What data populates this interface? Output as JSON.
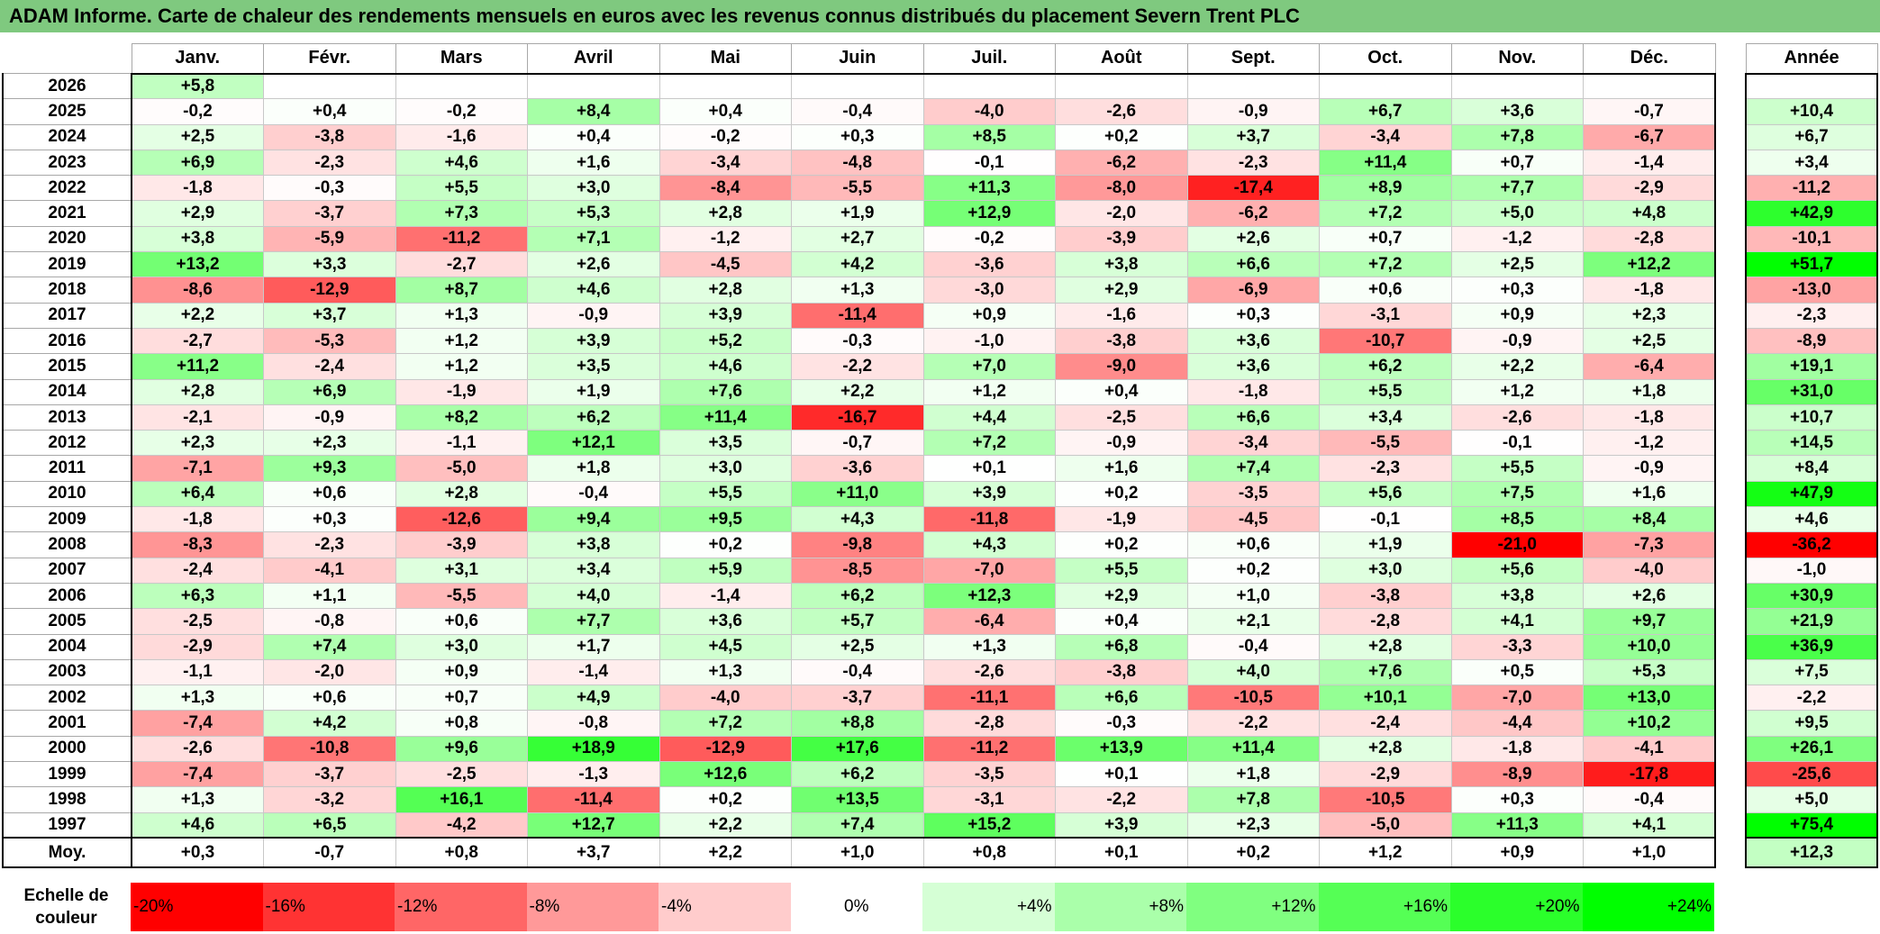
{
  "title": "ADAM Informe. Carte de chaleur des rendements mensuels en euros avec les revenus connus distribués du placement Severn Trent PLC",
  "chart_data": {
    "type": "heatmap",
    "title": "ADAM Informe. Carte de chaleur des rendements mensuels en euros avec les revenus connus distribués du placement Severn Trent PLC",
    "months": [
      "Janv.",
      "Févr.",
      "Mars",
      "Avril",
      "Mai",
      "Juin",
      "Juil.",
      "Août",
      "Sept.",
      "Oct.",
      "Nov.",
      "Déc."
    ],
    "annual_header": "Année",
    "rows": [
      {
        "year": "2026",
        "values": [
          "+5,8",
          "",
          "",
          "",
          "",
          "",
          "",
          "",
          "",
          "",
          "",
          ""
        ],
        "annual": ""
      },
      {
        "year": "2025",
        "values": [
          "-0,2",
          "+0,4",
          "-0,2",
          "+8,4",
          "+0,4",
          "-0,4",
          "-4,0",
          "-2,6",
          "-0,9",
          "+6,7",
          "+3,6",
          "-0,7"
        ],
        "annual": "+10,4"
      },
      {
        "year": "2024",
        "values": [
          "+2,5",
          "-3,8",
          "-1,6",
          "+0,4",
          "-0,2",
          "+0,3",
          "+8,5",
          "+0,2",
          "+3,7",
          "-3,4",
          "+7,8",
          "-6,7"
        ],
        "annual": "+6,7"
      },
      {
        "year": "2023",
        "values": [
          "+6,9",
          "-2,3",
          "+4,6",
          "+1,6",
          "-3,4",
          "-4,8",
          "-0,1",
          "-6,2",
          "-2,3",
          "+11,4",
          "+0,7",
          "-1,4"
        ],
        "annual": "+3,4"
      },
      {
        "year": "2022",
        "values": [
          "-1,8",
          "-0,3",
          "+5,5",
          "+3,0",
          "-8,4",
          "-5,5",
          "+11,3",
          "-8,0",
          "-17,4",
          "+8,9",
          "+7,7",
          "-2,9"
        ],
        "annual": "-11,2"
      },
      {
        "year": "2021",
        "values": [
          "+2,9",
          "-3,7",
          "+7,3",
          "+5,3",
          "+2,8",
          "+1,9",
          "+12,9",
          "-2,0",
          "-6,2",
          "+7,2",
          "+5,0",
          "+4,8"
        ],
        "annual": "+42,9"
      },
      {
        "year": "2020",
        "values": [
          "+3,8",
          "-5,9",
          "-11,2",
          "+7,1",
          "-1,2",
          "+2,7",
          "-0,2",
          "-3,9",
          "+2,6",
          "+0,7",
          "-1,2",
          "-2,8"
        ],
        "annual": "-10,1"
      },
      {
        "year": "2019",
        "values": [
          "+13,2",
          "+3,3",
          "-2,7",
          "+2,6",
          "-4,5",
          "+4,2",
          "-3,6",
          "+3,8",
          "+6,6",
          "+7,2",
          "+2,5",
          "+12,2"
        ],
        "annual": "+51,7"
      },
      {
        "year": "2018",
        "values": [
          "-8,6",
          "-12,9",
          "+8,7",
          "+4,6",
          "+2,8",
          "+1,3",
          "-3,0",
          "+2,9",
          "-6,9",
          "+0,6",
          "+0,3",
          "-1,8"
        ],
        "annual": "-13,0"
      },
      {
        "year": "2017",
        "values": [
          "+2,2",
          "+3,7",
          "+1,3",
          "-0,9",
          "+3,9",
          "-11,4",
          "+0,9",
          "-1,6",
          "+0,3",
          "-3,1",
          "+0,9",
          "+2,3"
        ],
        "annual": "-2,3"
      },
      {
        "year": "2016",
        "values": [
          "-2,7",
          "-5,3",
          "+1,2",
          "+3,9",
          "+5,2",
          "-0,3",
          "-1,0",
          "-3,8",
          "+3,6",
          "-10,7",
          "-0,9",
          "+2,5"
        ],
        "annual": "-8,9"
      },
      {
        "year": "2015",
        "values": [
          "+11,2",
          "-2,4",
          "+1,2",
          "+3,5",
          "+4,6",
          "-2,2",
          "+7,0",
          "-9,0",
          "+3,6",
          "+6,2",
          "+2,2",
          "-6,4"
        ],
        "annual": "+19,1"
      },
      {
        "year": "2014",
        "values": [
          "+2,8",
          "+6,9",
          "-1,9",
          "+1,9",
          "+7,6",
          "+2,2",
          "+1,2",
          "+0,4",
          "-1,8",
          "+5,5",
          "+1,2",
          "+1,8"
        ],
        "annual": "+31,0"
      },
      {
        "year": "2013",
        "values": [
          "-2,1",
          "-0,9",
          "+8,2",
          "+6,2",
          "+11,4",
          "-16,7",
          "+4,4",
          "-2,5",
          "+6,6",
          "+3,4",
          "-2,6",
          "-1,8"
        ],
        "annual": "+10,7"
      },
      {
        "year": "2012",
        "values": [
          "+2,3",
          "+2,3",
          "-1,1",
          "+12,1",
          "+3,5",
          "-0,7",
          "+7,2",
          "-0,9",
          "-3,4",
          "-5,5",
          "-0,1",
          "-1,2"
        ],
        "annual": "+14,5"
      },
      {
        "year": "2011",
        "values": [
          "-7,1",
          "+9,3",
          "-5,0",
          "+1,8",
          "+3,0",
          "-3,6",
          "+0,1",
          "+1,6",
          "+7,4",
          "-2,3",
          "+5,5",
          "-0,9"
        ],
        "annual": "+8,4"
      },
      {
        "year": "2010",
        "values": [
          "+6,4",
          "+0,6",
          "+2,8",
          "-0,4",
          "+5,5",
          "+11,0",
          "+3,9",
          "+0,2",
          "-3,5",
          "+5,6",
          "+7,5",
          "+1,6"
        ],
        "annual": "+47,9"
      },
      {
        "year": "2009",
        "values": [
          "-1,8",
          "+0,3",
          "-12,6",
          "+9,4",
          "+9,5",
          "+4,3",
          "-11,8",
          "-1,9",
          "-4,5",
          "-0,1",
          "+8,5",
          "+8,4"
        ],
        "annual": "+4,6"
      },
      {
        "year": "2008",
        "values": [
          "-8,3",
          "-2,3",
          "-3,9",
          "+3,8",
          "+0,2",
          "-9,8",
          "+4,3",
          "+0,2",
          "+0,6",
          "+1,9",
          "-21,0",
          "-7,3"
        ],
        "annual": "-36,2"
      },
      {
        "year": "2007",
        "values": [
          "-2,4",
          "-4,1",
          "+3,1",
          "+3,4",
          "+5,9",
          "-8,5",
          "-7,0",
          "+5,5",
          "+0,2",
          "+3,0",
          "+5,6",
          "-4,0"
        ],
        "annual": "-1,0"
      },
      {
        "year": "2006",
        "values": [
          "+6,3",
          "+1,1",
          "-5,5",
          "+4,0",
          "-1,4",
          "+6,2",
          "+12,3",
          "+2,9",
          "+1,0",
          "-3,8",
          "+3,8",
          "+2,6"
        ],
        "annual": "+30,9"
      },
      {
        "year": "2005",
        "values": [
          "-2,5",
          "-0,8",
          "+0,6",
          "+7,7",
          "+3,6",
          "+5,7",
          "-6,4",
          "+0,4",
          "+2,1",
          "-2,8",
          "+4,1",
          "+9,7"
        ],
        "annual": "+21,9"
      },
      {
        "year": "2004",
        "values": [
          "-2,9",
          "+7,4",
          "+3,0",
          "+1,7",
          "+4,5",
          "+2,5",
          "+1,3",
          "+6,8",
          "-0,4",
          "+2,8",
          "-3,3",
          "+10,0"
        ],
        "annual": "+36,9"
      },
      {
        "year": "2003",
        "values": [
          "-1,1",
          "-2,0",
          "+0,9",
          "-1,4",
          "+1,3",
          "-0,4",
          "-2,6",
          "-3,8",
          "+4,0",
          "+7,6",
          "+0,5",
          "+5,3"
        ],
        "annual": "+7,5"
      },
      {
        "year": "2002",
        "values": [
          "+1,3",
          "+0,6",
          "+0,7",
          "+4,9",
          "-4,0",
          "-3,7",
          "-11,1",
          "+6,6",
          "-10,5",
          "+10,1",
          "-7,0",
          "+13,0"
        ],
        "annual": "-2,2"
      },
      {
        "year": "2001",
        "values": [
          "-7,4",
          "+4,2",
          "+0,8",
          "-0,8",
          "+7,2",
          "+8,8",
          "-2,8",
          "-0,3",
          "-2,2",
          "-2,4",
          "-4,4",
          "+10,2"
        ],
        "annual": "+9,5"
      },
      {
        "year": "2000",
        "values": [
          "-2,6",
          "-10,8",
          "+9,6",
          "+18,9",
          "-12,9",
          "+17,6",
          "-11,2",
          "+13,9",
          "+11,4",
          "+2,8",
          "-1,8",
          "-4,1"
        ],
        "annual": "+26,1"
      },
      {
        "year": "1999",
        "values": [
          "-7,4",
          "-3,7",
          "-2,5",
          "-1,3",
          "+12,6",
          "+6,2",
          "-3,5",
          "+0,1",
          "+1,8",
          "-2,9",
          "-8,9",
          "-17,8"
        ],
        "annual": "-25,6"
      },
      {
        "year": "1998",
        "values": [
          "+1,3",
          "-3,2",
          "+16,1",
          "-11,4",
          "+0,2",
          "+13,5",
          "-3,1",
          "-2,2",
          "+7,8",
          "-10,5",
          "+0,3",
          "-0,4"
        ],
        "annual": "+5,0"
      },
      {
        "year": "1997",
        "values": [
          "+4,6",
          "+6,5",
          "-4,2",
          "+12,7",
          "+2,2",
          "+7,4",
          "+15,2",
          "+3,9",
          "+2,3",
          "-5,0",
          "+11,3",
          "+4,1"
        ],
        "annual": "+75,4"
      }
    ],
    "average": {
      "label": "Moy.",
      "values": [
        "+0,3",
        "-0,7",
        "+0,8",
        "+3,7",
        "+2,2",
        "+1,0",
        "+0,8",
        "+0,1",
        "+0,2",
        "+1,2",
        "+0,9",
        "+1,0"
      ],
      "annual": "+12,3"
    },
    "color_scale": {
      "label": "Echelle de couleur",
      "stops": [
        "-20%",
        "-16%",
        "-12%",
        "-8%",
        "-4%",
        "0%",
        "+4%",
        "+8%",
        "+12%",
        "+16%",
        "+20%",
        "+24%"
      ],
      "negative_color": "#ff0000",
      "positive_color": "#00ff00",
      "neutral_color": "#ffffff"
    }
  }
}
